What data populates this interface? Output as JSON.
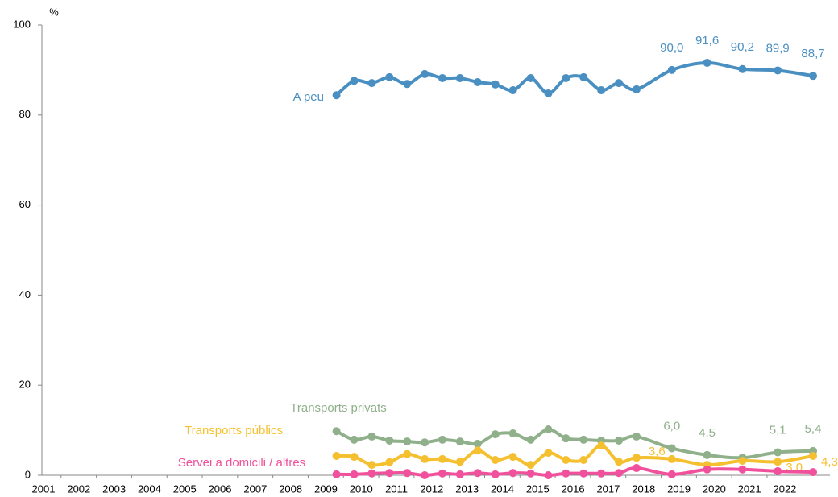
{
  "chart_data": {
    "type": "line",
    "ylabel": "%",
    "xlim": [
      2001,
      2022.8
    ],
    "xticks": [
      2001,
      2002,
      2003,
      2004,
      2005,
      2006,
      2007,
      2008,
      2009,
      2010,
      2011,
      2012,
      2013,
      2014,
      2015,
      2016,
      2017,
      2018,
      2019,
      2020,
      2021,
      2022
    ],
    "ylim": [
      0,
      100
    ],
    "yticks": [
      0,
      20,
      40,
      60,
      80,
      100
    ],
    "x": [
      2009.3,
      2009.8,
      2010.3,
      2010.8,
      2011.3,
      2011.8,
      2012.3,
      2012.8,
      2013.3,
      2013.8,
      2014.3,
      2014.8,
      2015.3,
      2015.8,
      2016.3,
      2016.8,
      2017.3,
      2017.8,
      2018.8,
      2019.8,
      2020.8,
      2021.8,
      2022.8
    ],
    "series": [
      {
        "name": "A peu",
        "color": "#4a8fc2",
        "values": [
          84.4,
          87.6,
          87.1,
          88.4,
          86.9,
          89.1,
          88.2,
          88.2,
          87.3,
          86.8,
          85.5,
          88.2,
          84.8,
          88.2,
          88.4,
          85.5,
          87.1,
          85.7,
          90.0,
          91.6,
          90.2,
          89.9,
          88.7
        ],
        "value_labels": [
          null,
          null,
          null,
          null,
          null,
          null,
          null,
          null,
          null,
          null,
          null,
          null,
          null,
          null,
          null,
          null,
          null,
          null,
          "90,0",
          "91,6",
          "90,2",
          "89,9",
          "88,7"
        ]
      },
      {
        "name": "Transports privats",
        "color": "#8fb08a",
        "values": [
          9.8,
          7.9,
          8.6,
          7.7,
          7.5,
          7.3,
          7.9,
          7.5,
          7.0,
          9.1,
          9.3,
          7.9,
          10.2,
          8.2,
          7.9,
          7.7,
          7.7,
          8.6,
          6.0,
          4.5,
          3.9,
          5.1,
          5.4
        ],
        "value_labels": [
          null,
          null,
          null,
          null,
          null,
          null,
          null,
          null,
          null,
          null,
          null,
          null,
          null,
          null,
          null,
          null,
          null,
          null,
          "6,0",
          "4,5",
          null,
          "5,1",
          "5,4"
        ]
      },
      {
        "name": "Transports públics",
        "color": "#f5c030",
        "values": [
          4.3,
          4.1,
          2.3,
          2.9,
          4.7,
          3.6,
          3.6,
          3.0,
          5.5,
          3.4,
          4.1,
          2.3,
          5.0,
          3.4,
          3.4,
          6.6,
          3.0,
          3.9,
          3.6,
          2.3,
          3.2,
          3.0,
          4.3
        ],
        "value_labels": [
          null,
          null,
          null,
          null,
          null,
          null,
          null,
          null,
          null,
          null,
          null,
          null,
          null,
          null,
          null,
          null,
          null,
          null,
          "3,6",
          null,
          null,
          "3,0",
          "4,3"
        ]
      },
      {
        "name": "Servei a domicili / altres",
        "color": "#f0509c",
        "values": [
          0.2,
          0.2,
          0.4,
          0.5,
          0.5,
          0.0,
          0.4,
          0.2,
          0.5,
          0.2,
          0.5,
          0.4,
          0.0,
          0.4,
          0.4,
          0.4,
          0.5,
          1.6,
          0.2,
          1.3,
          1.3,
          0.9,
          0.7
        ]
      }
    ]
  }
}
